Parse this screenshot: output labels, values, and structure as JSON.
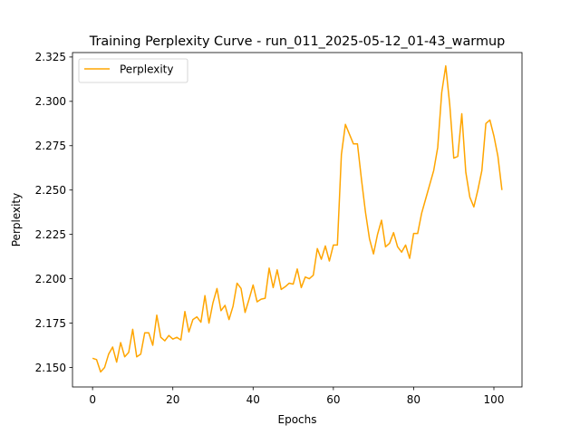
{
  "chart_data": {
    "type": "line",
    "title": "Training Perplexity Curve - run_011_2025-05-12_01-43_warmup",
    "xlabel": "Epochs",
    "ylabel": "Perplexity",
    "xlim": [
      -5,
      107
    ],
    "ylim": [
      2.139,
      2.3275
    ],
    "x_ticks": [
      0,
      20,
      40,
      60,
      80,
      100
    ],
    "y_ticks": [
      2.15,
      2.175,
      2.2,
      2.225,
      2.25,
      2.275,
      2.3,
      2.325
    ],
    "y_tick_labels": [
      "2.150",
      "2.175",
      "2.200",
      "2.225",
      "2.250",
      "2.275",
      "2.300",
      "2.325"
    ],
    "grid": false,
    "legend_position": "top-left",
    "series": [
      {
        "name": "Perplexity",
        "color": "#ffa500",
        "x": [
          0,
          1,
          2,
          3,
          4,
          5,
          6,
          7,
          8,
          9,
          10,
          11,
          12,
          13,
          14,
          15,
          16,
          17,
          18,
          19,
          20,
          21,
          22,
          23,
          24,
          25,
          26,
          27,
          28,
          29,
          30,
          31,
          32,
          33,
          34,
          35,
          36,
          37,
          38,
          39,
          40,
          41,
          42,
          43,
          44,
          45,
          46,
          47,
          48,
          49,
          50,
          51,
          52,
          53,
          54,
          55,
          56,
          57,
          58,
          59,
          60,
          61,
          62,
          63,
          64,
          65,
          66,
          67,
          68,
          69,
          70,
          71,
          72,
          73,
          74,
          75,
          76,
          77,
          78,
          79,
          80,
          81,
          82,
          83,
          84,
          85,
          86,
          87,
          88,
          89,
          90,
          91,
          92,
          93,
          94,
          95,
          96,
          97,
          98,
          99,
          100,
          101,
          102
        ],
        "values": [
          2.1552,
          2.1544,
          2.1475,
          2.15,
          2.1575,
          2.1615,
          2.153,
          2.164,
          2.156,
          2.1585,
          2.1715,
          2.156,
          2.1575,
          2.1695,
          2.1695,
          2.1625,
          2.1795,
          2.167,
          2.165,
          2.168,
          2.166,
          2.167,
          2.1655,
          2.1815,
          2.17,
          2.177,
          2.1785,
          2.1755,
          2.1905,
          2.175,
          2.1865,
          2.1945,
          2.182,
          2.185,
          2.177,
          2.1845,
          2.1975,
          2.1945,
          2.181,
          2.1885,
          2.1965,
          2.187,
          2.1885,
          2.189,
          2.206,
          2.195,
          2.205,
          2.194,
          2.1955,
          2.1975,
          2.197,
          2.2055,
          2.195,
          2.201,
          2.2,
          2.202,
          2.217,
          2.211,
          2.2185,
          2.21,
          2.219,
          2.219,
          2.27,
          2.287,
          2.2815,
          2.276,
          2.276,
          2.256,
          2.2375,
          2.2225,
          2.214,
          2.225,
          2.233,
          2.218,
          2.22,
          2.226,
          2.218,
          2.215,
          2.219,
          2.2115,
          2.2255,
          2.2255,
          2.237,
          2.245,
          2.253,
          2.261,
          2.274,
          2.305,
          2.32,
          2.298,
          2.268,
          2.269,
          2.293,
          2.26,
          2.246,
          2.2405,
          2.25,
          2.261,
          2.2875,
          2.2895,
          2.2805,
          2.269,
          2.25
        ]
      }
    ]
  }
}
